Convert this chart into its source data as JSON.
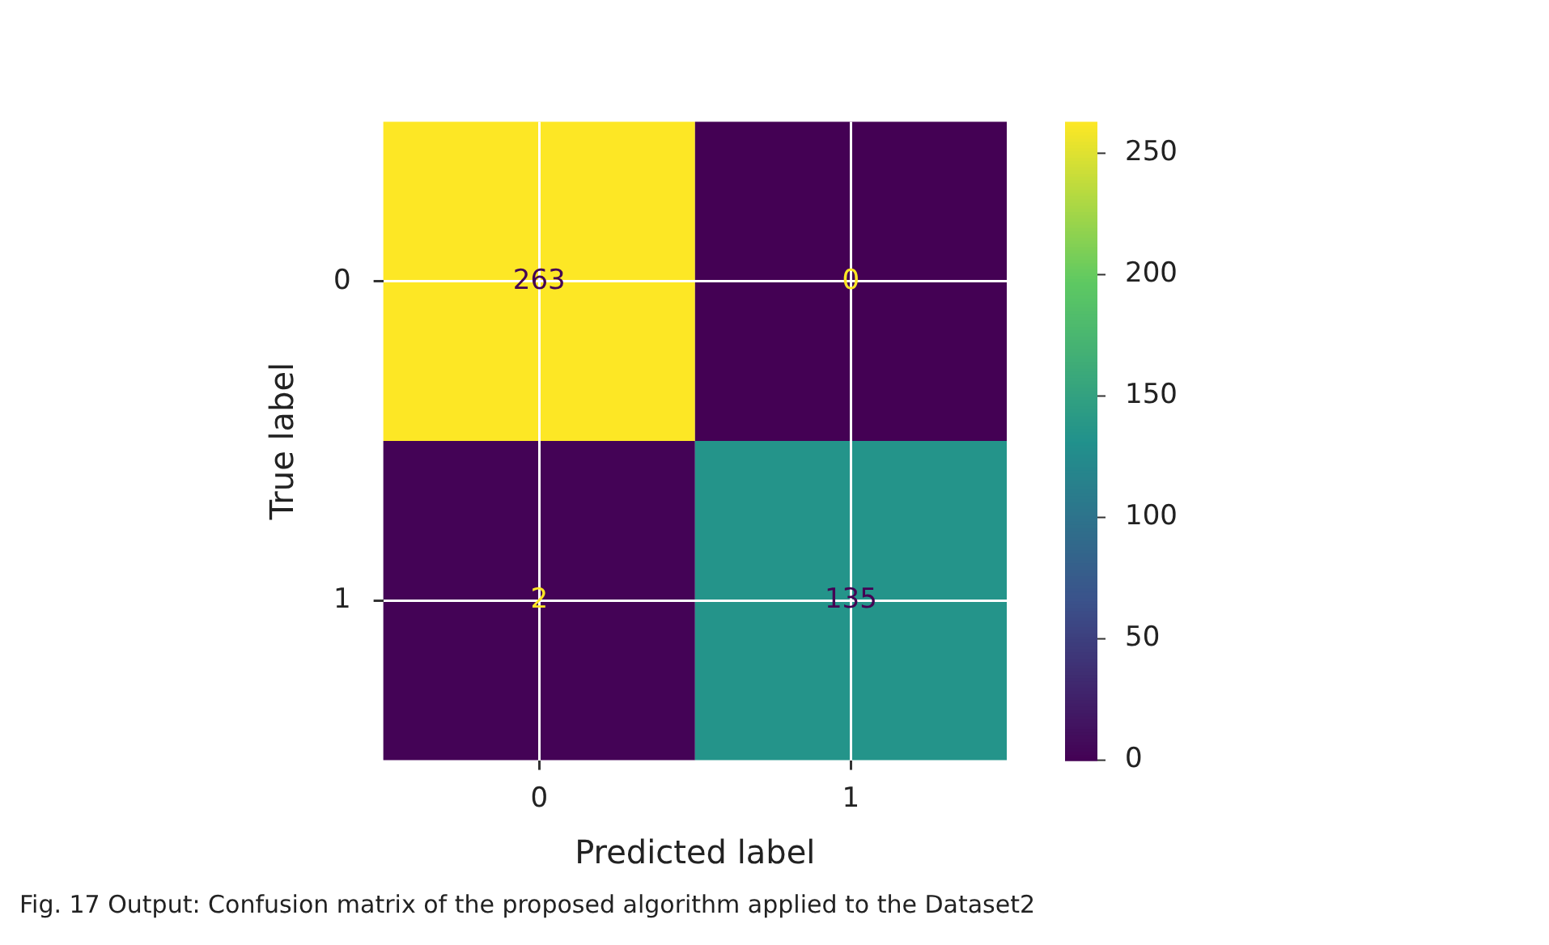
{
  "chart_data": {
    "type": "heatmap",
    "xlabel": "Predicted label",
    "ylabel": "True label",
    "categories": [
      "0",
      "1"
    ],
    "y_categories": [
      "0",
      "1"
    ],
    "cells": [
      [
        263,
        0
      ],
      [
        2,
        135
      ]
    ],
    "clim": [
      0,
      263
    ],
    "cticks": [
      0,
      50,
      100,
      150,
      200,
      250
    ],
    "data_labels": true,
    "grid": true,
    "annotations": [
      "Fig. 17  Output: Confusion matrix of the proposed algorithm applied to the Dataset2"
    ]
  }
}
